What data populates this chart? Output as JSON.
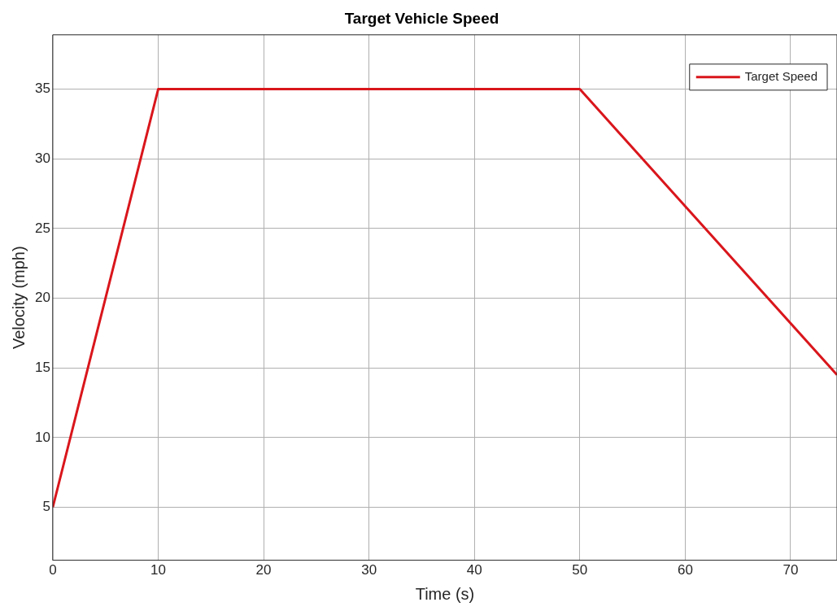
{
  "chart_data": {
    "type": "line",
    "title": "Target Vehicle Speed",
    "xlabel": "Time (s)",
    "ylabel": "Velocity (mph)",
    "x": [
      0,
      10,
      50,
      74.4
    ],
    "series": [
      {
        "name": "Target Speed",
        "color": "#d9161c",
        "values": [
          5,
          35,
          35,
          14.5
        ]
      }
    ],
    "xlim": [
      0,
      74.4
    ],
    "xticks": [
      0,
      10,
      20,
      30,
      40,
      50,
      60,
      70
    ],
    "ylim": [
      1.2,
      38.9
    ],
    "yticks": [
      5,
      10,
      15,
      20,
      25,
      30,
      35
    ],
    "grid": true,
    "legend": "top right",
    "marker": "none",
    "line_style": "solid"
  }
}
